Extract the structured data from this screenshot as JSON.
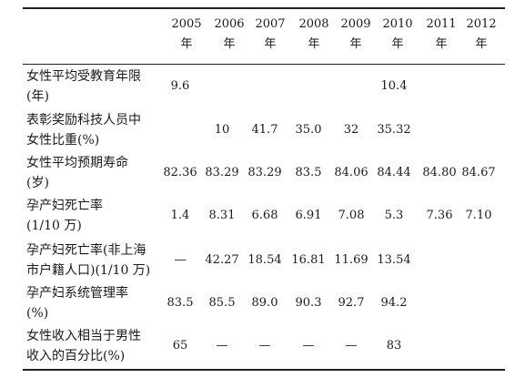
{
  "columns": [
    {
      "year": "2005",
      "unit": "年"
    },
    {
      "year": "2006",
      "unit": "年"
    },
    {
      "year": "2007",
      "unit": "年"
    },
    {
      "year": "2008",
      "unit": "年"
    },
    {
      "year": "2009",
      "unit": "年"
    },
    {
      "year": "2010",
      "unit": "年"
    },
    {
      "year": "2011",
      "unit": "年"
    },
    {
      "year": "2012",
      "unit": "年"
    }
  ],
  "rows": [
    {
      "line1": "女性平均受教育年限",
      "line2": "(年)",
      "values": [
        "9.6",
        "",
        "",
        "",
        "",
        "10.4",
        "",
        ""
      ]
    },
    {
      "line1": "表彰奖励科技人员中",
      "line2": "女性比重(%)",
      "values": [
        "",
        "10",
        "41.7",
        "35.0",
        "32",
        "35.32",
        "",
        ""
      ]
    },
    {
      "line1": "女性平均预期寿命",
      "line2": "(岁)",
      "values": [
        "82.36",
        "83.29",
        "83.29",
        "83.5",
        "84.06",
        "84.44",
        "84.80",
        "84.67"
      ]
    },
    {
      "line1": "孕产妇死亡率",
      "line2": "(1/10 万)",
      "values": [
        "1.4",
        "8.31",
        "6.68",
        "6.91",
        "7.08",
        "5.3",
        "7.36",
        "7.10"
      ]
    },
    {
      "line1": "孕产妇死亡率(非上海",
      "line2": "市户籍人口)(1/10 万)",
      "values": [
        "—",
        "42.27",
        "18.54",
        "16.81",
        "11.69",
        "13.54",
        "",
        ""
      ]
    },
    {
      "line1": "孕产妇系统管理率",
      "line2": "(%)",
      "values": [
        "83.5",
        "85.5",
        "89.0",
        "90.3",
        "92.7",
        "94.2",
        "",
        ""
      ]
    },
    {
      "line1": "女性收入相当于男性",
      "line2": "收入的百分比(%)",
      "values": [
        "65",
        "—",
        "—",
        "—",
        "—",
        "83",
        "",
        ""
      ]
    }
  ]
}
